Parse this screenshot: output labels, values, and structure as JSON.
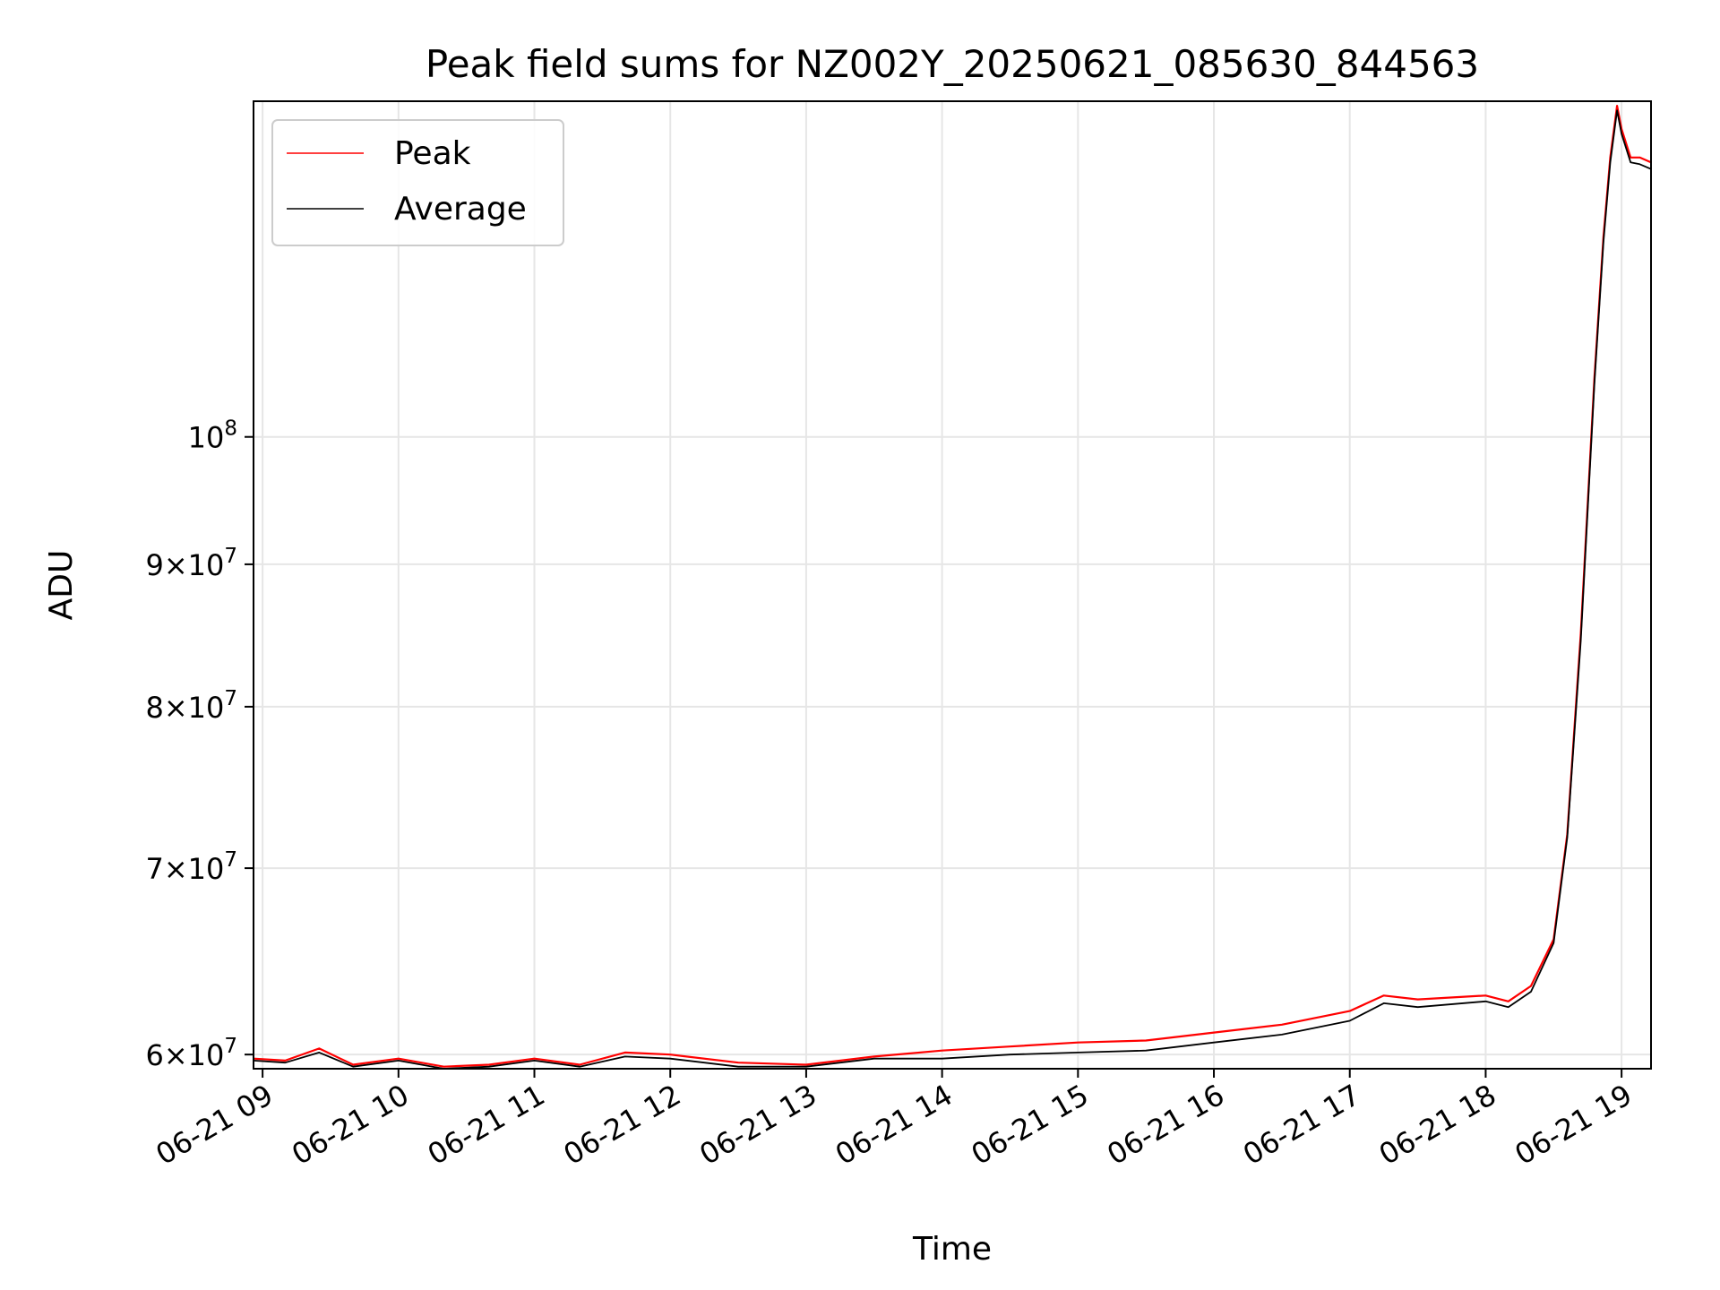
{
  "chart_data": {
    "type": "line",
    "title": "Peak field sums for NZ002Y_20250621_085630_844563",
    "xlabel": "Time",
    "ylabel": "ADU",
    "yscale": "log",
    "grid": true,
    "legend": "upper-left",
    "x_ticks": [
      "06-21 09",
      "06-21 10",
      "06-21 11",
      "06-21 12",
      "06-21 13",
      "06-21 14",
      "06-21 15",
      "06-21 16",
      "06-21 17",
      "06-21 18",
      "06-21 19"
    ],
    "xlim": [
      "2025-06-21T08:56",
      "2025-06-21T19:13"
    ],
    "ylim": [
      59300000,
      132000000
    ],
    "y_ticks": [
      {
        "value": 60000000,
        "mantissa": "6",
        "exp": "7"
      },
      {
        "value": 70000000,
        "mantissa": "7",
        "exp": "7"
      },
      {
        "value": 80000000,
        "mantissa": "8",
        "exp": "7"
      },
      {
        "value": 90000000,
        "mantissa": "9",
        "exp": "7"
      },
      {
        "value": 100000000,
        "mantissa": "",
        "exp": "8"
      }
    ],
    "series": [
      {
        "name": "Peak",
        "color": "#ff0000",
        "x": [
          "2025-06-21T08:56",
          "2025-06-21T09:10",
          "2025-06-21T09:25",
          "2025-06-21T09:40",
          "2025-06-21T10:00",
          "2025-06-21T10:20",
          "2025-06-21T10:40",
          "2025-06-21T11:00",
          "2025-06-21T11:20",
          "2025-06-21T11:40",
          "2025-06-21T12:00",
          "2025-06-21T12:30",
          "2025-06-21T13:00",
          "2025-06-21T13:30",
          "2025-06-21T14:00",
          "2025-06-21T14:30",
          "2025-06-21T15:00",
          "2025-06-21T15:30",
          "2025-06-21T16:00",
          "2025-06-21T16:30",
          "2025-06-21T17:00",
          "2025-06-21T17:15",
          "2025-06-21T17:30",
          "2025-06-21T18:00",
          "2025-06-21T18:10",
          "2025-06-21T18:20",
          "2025-06-21T18:30",
          "2025-06-21T18:36",
          "2025-06-21T18:42",
          "2025-06-21T18:48",
          "2025-06-21T18:52",
          "2025-06-21T18:55",
          "2025-06-21T18:58",
          "2025-06-21T19:00",
          "2025-06-21T19:04",
          "2025-06-21T19:08",
          "2025-06-21T19:13"
        ],
        "values": [
          59800000,
          59700000,
          60300000,
          59500000,
          59800000,
          59400000,
          59500000,
          59800000,
          59500000,
          60100000,
          60000000,
          59600000,
          59500000,
          59900000,
          60200000,
          60400000,
          60600000,
          60700000,
          61100000,
          61500000,
          62200000,
          63000000,
          62800000,
          63000000,
          62700000,
          63500000,
          66000000,
          72000000,
          85000000,
          105000000,
          118000000,
          126000000,
          131500000,
          129000000,
          126000000,
          126000000,
          125500000
        ]
      },
      {
        "name": "Average",
        "color": "#000000",
        "x": [
          "2025-06-21T08:56",
          "2025-06-21T09:10",
          "2025-06-21T09:25",
          "2025-06-21T09:40",
          "2025-06-21T10:00",
          "2025-06-21T10:20",
          "2025-06-21T10:40",
          "2025-06-21T11:00",
          "2025-06-21T11:20",
          "2025-06-21T11:40",
          "2025-06-21T12:00",
          "2025-06-21T12:30",
          "2025-06-21T13:00",
          "2025-06-21T13:30",
          "2025-06-21T14:00",
          "2025-06-21T14:30",
          "2025-06-21T15:00",
          "2025-06-21T15:30",
          "2025-06-21T16:00",
          "2025-06-21T16:30",
          "2025-06-21T17:00",
          "2025-06-21T17:15",
          "2025-06-21T17:30",
          "2025-06-21T18:00",
          "2025-06-21T18:10",
          "2025-06-21T18:20",
          "2025-06-21T18:30",
          "2025-06-21T18:36",
          "2025-06-21T18:42",
          "2025-06-21T18:48",
          "2025-06-21T18:52",
          "2025-06-21T18:55",
          "2025-06-21T18:58",
          "2025-06-21T19:00",
          "2025-06-21T19:04",
          "2025-06-21T19:08",
          "2025-06-21T19:13"
        ],
        "values": [
          59700000,
          59600000,
          60100000,
          59400000,
          59700000,
          59300000,
          59400000,
          59700000,
          59400000,
          59900000,
          59800000,
          59400000,
          59400000,
          59800000,
          59800000,
          60000000,
          60100000,
          60200000,
          60600000,
          61000000,
          61700000,
          62600000,
          62400000,
          62700000,
          62400000,
          63200000,
          65800000,
          71800000,
          84500000,
          104500000,
          117500000,
          125500000,
          131000000,
          128500000,
          125500000,
          125300000,
          124800000
        ]
      }
    ]
  }
}
